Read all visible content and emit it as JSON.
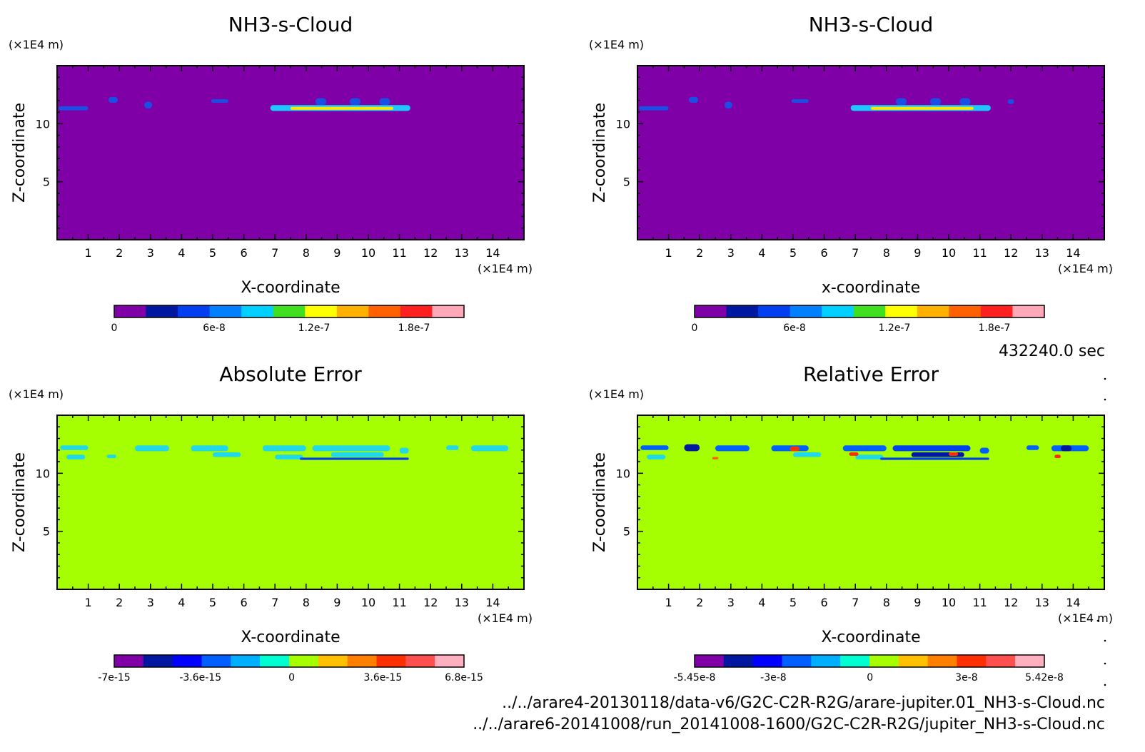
{
  "chart_data": [
    {
      "type": "heatmap",
      "title": "NH3-s-Cloud",
      "xlabel": "X-coordinate",
      "ylabel": "Z-coordinate",
      "x_unit": "(×1E4 m)",
      "y_unit": "(×1E4 m)",
      "xlim": [
        0,
        15
      ],
      "ylim": [
        0,
        15
      ],
      "x_ticks": [
        "1",
        "2",
        "3",
        "4",
        "5",
        "6",
        "7",
        "8",
        "9",
        "10",
        "11",
        "12",
        "13",
        "14"
      ],
      "y_ticks": [
        "5",
        "10"
      ],
      "background_color": "#8000a8",
      "features": [
        {
          "x0": 0.05,
          "x1": 1.0,
          "z0": 11.15,
          "z1": 11.5,
          "color": "#1a4fe6"
        },
        {
          "x0": 1.65,
          "x1": 1.95,
          "z0": 11.8,
          "z1": 12.3,
          "color": "#1a4fe6"
        },
        {
          "x0": 2.8,
          "x1": 3.05,
          "z0": 11.3,
          "z1": 11.9,
          "color": "#1a4fe6"
        },
        {
          "x0": 4.95,
          "x1": 5.5,
          "z0": 11.8,
          "z1": 12.1,
          "color": "#1a4fe6"
        },
        {
          "x0": 6.85,
          "x1": 11.35,
          "z0": 11.1,
          "z1": 11.6,
          "color": "#1ec8ff"
        },
        {
          "x0": 7.5,
          "x1": 10.8,
          "z0": 11.2,
          "z1": 11.45,
          "color": "#ffe600"
        },
        {
          "x0": 8.3,
          "x1": 8.65,
          "z0": 11.6,
          "z1": 12.2,
          "color": "#1a4fe6"
        },
        {
          "x0": 9.4,
          "x1": 9.75,
          "z0": 11.6,
          "z1": 12.2,
          "color": "#1a4fe6"
        },
        {
          "x0": 10.35,
          "x1": 10.7,
          "z0": 11.6,
          "z1": 12.2,
          "color": "#1a4fe6"
        }
      ],
      "colorbar": {
        "colors": [
          "#8000a8",
          "#0018a0",
          "#0040f0",
          "#0080ff",
          "#00d0ff",
          "#40e020",
          "#ffff00",
          "#ffb000",
          "#ff6000",
          "#ff2020",
          "#ffa8b8"
        ],
        "labels": [
          {
            "value": 0,
            "text": "0"
          },
          {
            "value": 6e-08,
            "text": "6e-8"
          },
          {
            "value": 1.2e-07,
            "text": "1.2e-7"
          },
          {
            "value": 1.8e-07,
            "text": "1.8e-7"
          }
        ],
        "range": [
          0,
          2.1e-07
        ]
      }
    },
    {
      "type": "heatmap",
      "title": "NH3-s-Cloud",
      "xlabel": "x-coordinate",
      "ylabel": "Z-coordinate",
      "x_unit": "(×1E4 m)",
      "y_unit": "(×1E4 m)",
      "xlim": [
        0,
        15
      ],
      "ylim": [
        0,
        15
      ],
      "x_ticks": [
        "1",
        "2",
        "3",
        "4",
        "5",
        "6",
        "7",
        "8",
        "9",
        "10",
        "11",
        "12",
        "13",
        "14"
      ],
      "y_ticks": [
        "5",
        "10"
      ],
      "background_color": "#8000a8",
      "features": [
        {
          "x0": 0.05,
          "x1": 1.0,
          "z0": 11.15,
          "z1": 11.5,
          "color": "#1a4fe6"
        },
        {
          "x0": 1.65,
          "x1": 1.95,
          "z0": 11.8,
          "z1": 12.3,
          "color": "#1a4fe6"
        },
        {
          "x0": 2.8,
          "x1": 3.05,
          "z0": 11.3,
          "z1": 11.9,
          "color": "#1a4fe6"
        },
        {
          "x0": 4.95,
          "x1": 5.5,
          "z0": 11.8,
          "z1": 12.1,
          "color": "#1a4fe6"
        },
        {
          "x0": 6.85,
          "x1": 11.35,
          "z0": 11.1,
          "z1": 11.6,
          "color": "#1ec8ff"
        },
        {
          "x0": 7.5,
          "x1": 10.8,
          "z0": 11.2,
          "z1": 11.45,
          "color": "#ffe600"
        },
        {
          "x0": 8.3,
          "x1": 8.65,
          "z0": 11.6,
          "z1": 12.2,
          "color": "#1a4fe6"
        },
        {
          "x0": 9.4,
          "x1": 9.75,
          "z0": 11.6,
          "z1": 12.2,
          "color": "#1a4fe6"
        },
        {
          "x0": 10.35,
          "x1": 10.7,
          "z0": 11.6,
          "z1": 12.2,
          "color": "#1a4fe6"
        },
        {
          "x0": 11.9,
          "x1": 12.1,
          "z0": 11.7,
          "z1": 12.1,
          "color": "#1a4fe6"
        }
      ],
      "colorbar": {
        "colors": [
          "#8000a8",
          "#0018a0",
          "#0040f0",
          "#0080ff",
          "#00d0ff",
          "#40e020",
          "#ffff00",
          "#ffb000",
          "#ff6000",
          "#ff2020",
          "#ffa8b8"
        ],
        "labels": [
          {
            "value": 0,
            "text": "0"
          },
          {
            "value": 6e-08,
            "text": "6e-8"
          },
          {
            "value": 1.2e-07,
            "text": "1.2e-7"
          },
          {
            "value": 1.8e-07,
            "text": "1.8e-7"
          }
        ],
        "range": [
          0,
          2.1e-07
        ]
      }
    },
    {
      "type": "heatmap",
      "title": "Absolute Error",
      "xlabel": "X-coordinate",
      "ylabel": "Z-coordinate",
      "x_unit": "(×1E4 m)",
      "y_unit": "(×1E4 m)",
      "xlim": [
        0,
        15
      ],
      "ylim": [
        0,
        15
      ],
      "x_ticks": [
        "1",
        "2",
        "3",
        "4",
        "5",
        "6",
        "7",
        "8",
        "9",
        "10",
        "11",
        "12",
        "13",
        "14"
      ],
      "y_ticks": [
        "5",
        "10"
      ],
      "background_color": "#a6ff00",
      "features": [
        {
          "x0": 0.1,
          "x1": 1.0,
          "z0": 12.0,
          "z1": 12.4,
          "color": "#20d8e8"
        },
        {
          "x0": 0.3,
          "x1": 0.9,
          "z0": 11.2,
          "z1": 11.6,
          "color": "#20d8e8"
        },
        {
          "x0": 1.6,
          "x1": 1.9,
          "z0": 11.3,
          "z1": 11.6,
          "color": "#20d8e8"
        },
        {
          "x0": 2.5,
          "x1": 3.6,
          "z0": 11.9,
          "z1": 12.4,
          "color": "#20d8e8"
        },
        {
          "x0": 4.3,
          "x1": 5.5,
          "z0": 11.9,
          "z1": 12.4,
          "color": "#20d8e8"
        },
        {
          "x0": 5.0,
          "x1": 5.9,
          "z0": 11.4,
          "z1": 11.8,
          "color": "#20d8e8"
        },
        {
          "x0": 6.6,
          "x1": 8.0,
          "z0": 11.9,
          "z1": 12.4,
          "color": "#20d8e8"
        },
        {
          "x0": 7.0,
          "x1": 7.9,
          "z0": 11.2,
          "z1": 11.6,
          "color": "#20d8e8"
        },
        {
          "x0": 8.2,
          "x1": 10.7,
          "z0": 11.9,
          "z1": 12.4,
          "color": "#20d8e8"
        },
        {
          "x0": 8.8,
          "x1": 10.5,
          "z0": 11.4,
          "z1": 11.8,
          "color": "#20d8e8"
        },
        {
          "x0": 7.8,
          "x1": 11.3,
          "z0": 11.15,
          "z1": 11.35,
          "color": "#0040f0"
        },
        {
          "x0": 11.0,
          "x1": 11.3,
          "z0": 11.7,
          "z1": 12.2,
          "color": "#20d8e8"
        },
        {
          "x0": 12.5,
          "x1": 12.9,
          "z0": 12.0,
          "z1": 12.4,
          "color": "#20d8e8"
        },
        {
          "x0": 13.3,
          "x1": 14.5,
          "z0": 11.9,
          "z1": 12.4,
          "color": "#20d8e8"
        }
      ],
      "colorbar": {
        "colors": [
          "#8000a8",
          "#0018a0",
          "#0000ff",
          "#0060ff",
          "#00b0ff",
          "#00ffd0",
          "#a6ff00",
          "#ffc000",
          "#ff8000",
          "#ff3000",
          "#ff5050",
          "#ffb0c0"
        ],
        "labels": [
          {
            "value": -7e-15,
            "text": "-7e-15"
          },
          {
            "value": -3.6e-15,
            "text": "-3.6e-15"
          },
          {
            "value": 0,
            "text": "0"
          },
          {
            "value": 3.6e-15,
            "text": "3.6e-15"
          },
          {
            "value": 6.8e-15,
            "text": "6.8e-15"
          }
        ],
        "range": [
          -7e-15,
          6.8e-15
        ]
      }
    },
    {
      "type": "heatmap",
      "title": "Relative Error",
      "xlabel": "X-coordinate",
      "ylabel": "Z-coordinate",
      "x_unit": "(×1E4 m)",
      "y_unit": "(×1E4 m)",
      "xlim": [
        0,
        15
      ],
      "ylim": [
        0,
        15
      ],
      "x_ticks": [
        "1",
        "2",
        "3",
        "4",
        "5",
        "6",
        "7",
        "8",
        "9",
        "10",
        "11",
        "12",
        "13",
        "14"
      ],
      "y_ticks": [
        "5",
        "10"
      ],
      "background_color": "#a6ff00",
      "features": [
        {
          "x0": 0.1,
          "x1": 1.0,
          "z0": 12.0,
          "z1": 12.4,
          "color": "#0060ff"
        },
        {
          "x0": 0.3,
          "x1": 0.9,
          "z0": 11.2,
          "z1": 11.6,
          "color": "#20d8e8"
        },
        {
          "x0": 1.5,
          "x1": 2.0,
          "z0": 11.9,
          "z1": 12.5,
          "color": "#0018a0"
        },
        {
          "x0": 2.5,
          "x1": 3.6,
          "z0": 11.9,
          "z1": 12.4,
          "color": "#0060ff"
        },
        {
          "x0": 2.4,
          "x1": 2.6,
          "z0": 11.2,
          "z1": 11.4,
          "color": "#ff6000"
        },
        {
          "x0": 4.3,
          "x1": 5.5,
          "z0": 11.9,
          "z1": 12.4,
          "color": "#0060ff"
        },
        {
          "x0": 4.9,
          "x1": 5.2,
          "z0": 11.9,
          "z1": 12.3,
          "color": "#ff3000"
        },
        {
          "x0": 5.0,
          "x1": 5.9,
          "z0": 11.4,
          "z1": 11.8,
          "color": "#20d8e8"
        },
        {
          "x0": 6.6,
          "x1": 8.0,
          "z0": 11.9,
          "z1": 12.4,
          "color": "#0060ff"
        },
        {
          "x0": 7.0,
          "x1": 7.9,
          "z0": 11.2,
          "z1": 11.6,
          "color": "#20d8e8"
        },
        {
          "x0": 6.8,
          "x1": 7.1,
          "z0": 11.5,
          "z1": 11.8,
          "color": "#ff3000"
        },
        {
          "x0": 8.2,
          "x1": 10.7,
          "z0": 11.9,
          "z1": 12.4,
          "color": "#0040f0"
        },
        {
          "x0": 8.8,
          "x1": 10.5,
          "z0": 11.4,
          "z1": 11.8,
          "color": "#0018a0"
        },
        {
          "x0": 7.8,
          "x1": 11.3,
          "z0": 11.15,
          "z1": 11.35,
          "color": "#0040f0"
        },
        {
          "x0": 10.0,
          "x1": 10.3,
          "z0": 11.5,
          "z1": 11.8,
          "color": "#ff3000"
        },
        {
          "x0": 11.0,
          "x1": 11.3,
          "z0": 11.7,
          "z1": 12.2,
          "color": "#0060ff"
        },
        {
          "x0": 12.5,
          "x1": 12.9,
          "z0": 12.0,
          "z1": 12.4,
          "color": "#0060ff"
        },
        {
          "x0": 13.3,
          "x1": 14.5,
          "z0": 11.9,
          "z1": 12.4,
          "color": "#0060ff"
        },
        {
          "x0": 13.6,
          "x1": 13.95,
          "z0": 11.9,
          "z1": 12.4,
          "color": "#0018a0"
        },
        {
          "x0": 13.4,
          "x1": 13.6,
          "z0": 11.3,
          "z1": 11.6,
          "color": "#ff3000"
        }
      ],
      "colorbar": {
        "colors": [
          "#8000a8",
          "#0018a0",
          "#0000ff",
          "#0060ff",
          "#00b0ff",
          "#00ffd0",
          "#a6ff00",
          "#ffc000",
          "#ff8000",
          "#ff3000",
          "#ff5050",
          "#ffb0c0"
        ],
        "labels": [
          {
            "value": -5.45e-08,
            "text": "-5.45e-8"
          },
          {
            "value": -3e-08,
            "text": "-3e-8"
          },
          {
            "value": 0,
            "text": "0"
          },
          {
            "value": 3e-08,
            "text": "3e-8"
          },
          {
            "value": 5.42e-08,
            "text": "5.42e-8"
          }
        ],
        "range": [
          -5.45e-08,
          5.42e-08
        ]
      }
    }
  ],
  "time_label": "432240.0 sec",
  "file_paths": [
    "../../arare4-20130118/data-v6/G2C-C2R-R2G/arare-jupiter.01_NH3-s-Cloud.nc",
    "../../arare6-20141008/run_20141008-1600/G2C-C2R-R2G/jupiter_NH3-s-Cloud.nc"
  ]
}
